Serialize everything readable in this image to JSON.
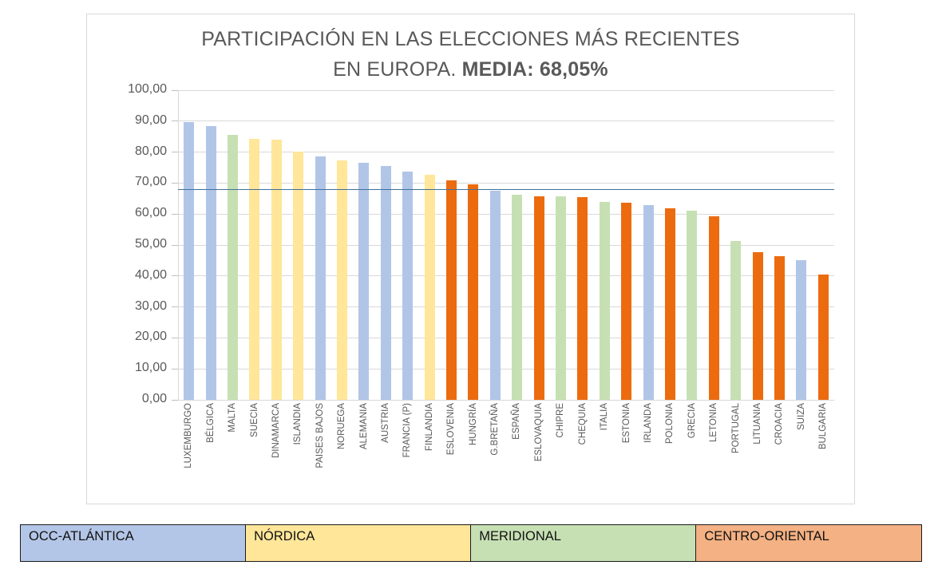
{
  "title": {
    "line1": "PARTICIPACIÓN EN LAS ELECCIONES MÁS RECIENTES",
    "line2_normal": "EN EUROPA. ",
    "line2_bold": "MEDIA: 68,05%"
  },
  "chart_data": {
    "type": "bar",
    "title": "PARTICIPACIÓN EN LAS ELECCIONES MÁS RECIENTES EN EUROPA. MEDIA: 68,05%",
    "xlabel": "",
    "ylabel": "",
    "ylim": [
      0,
      100
    ],
    "grid": true,
    "yticks": [
      "100,00",
      "90,00",
      "80,00",
      "70,00",
      "60,00",
      "50,00",
      "40,00",
      "30,00",
      "20,00",
      "10,00",
      "0,00"
    ],
    "mean": 68.05,
    "mean_label": "68,05%",
    "mean_line_color": "#41719C",
    "categories": [
      "LUXEMBURGO",
      "BÉLGICA",
      "MALTA",
      "SUECIA",
      "DINAMARCA",
      "ISLANDIA",
      "PAISES BAJOS",
      "NORUEGA",
      "ALEMANIA",
      "AUSTRIA",
      "FRANCIA (P)",
      "FINLANDIA",
      "ESLOVENIA",
      "HUNGRÍA",
      "G.BRETAÑA",
      "ESPAÑA",
      "ESLOVAQUIA",
      "CHIPRE",
      "CHEQUIA",
      "ITALIA",
      "ESTONIA",
      "IRLANDA",
      "POLONIA",
      "GRECIA",
      "LETONIA",
      "PORTUGAL",
      "LITUANIA",
      "CROACIA",
      "SUIZA",
      "BULGARIA"
    ],
    "values": [
      89.66,
      88.38,
      85.65,
      84.21,
      84.1,
      80.1,
      78.71,
      77.2,
      76.6,
      75.59,
      73.69,
      72.67,
      70.97,
      69.59,
      67.55,
      66.23,
      65.81,
      65.72,
      65.43,
      63.91,
      63.67,
      62.9,
      61.74,
      61.0,
      59.4,
      51.4,
      47.8,
      46.4,
      45.1,
      40.49
    ],
    "groups": [
      "occ-atlantica",
      "occ-atlantica",
      "meridional",
      "nordica",
      "nordica",
      "nordica",
      "occ-atlantica",
      "nordica",
      "occ-atlantica",
      "occ-atlantica",
      "occ-atlantica",
      "nordica",
      "centro-oriental",
      "centro-oriental",
      "occ-atlantica",
      "meridional",
      "centro-oriental",
      "meridional",
      "centro-oriental",
      "meridional",
      "centro-oriental",
      "occ-atlantica",
      "centro-oriental",
      "meridional",
      "centro-oriental",
      "meridional",
      "centro-oriental",
      "centro-oriental",
      "occ-atlantica",
      "centro-oriental"
    ],
    "group_colors": {
      "occ-atlantica": "#B1C5E7",
      "nordica": "#FFE699",
      "meridional": "#C6E0B4",
      "centro-oriental": "#EC6B0F"
    },
    "legend_position": "bottom"
  },
  "legend": {
    "items": [
      {
        "label": "OCC-ATLÁNTICA",
        "color": "#B4C6E7"
      },
      {
        "label": "NÓRDICA",
        "color": "#FFE699"
      },
      {
        "label": "MERIDIONAL",
        "color": "#C6E0B4"
      },
      {
        "label": "CENTRO-ORIENTAL",
        "color": "#F4B183"
      }
    ]
  },
  "colors": {
    "axis_text": "#595959",
    "gridline": "#D9D9D9",
    "frame_border": "#D9D9D9"
  }
}
